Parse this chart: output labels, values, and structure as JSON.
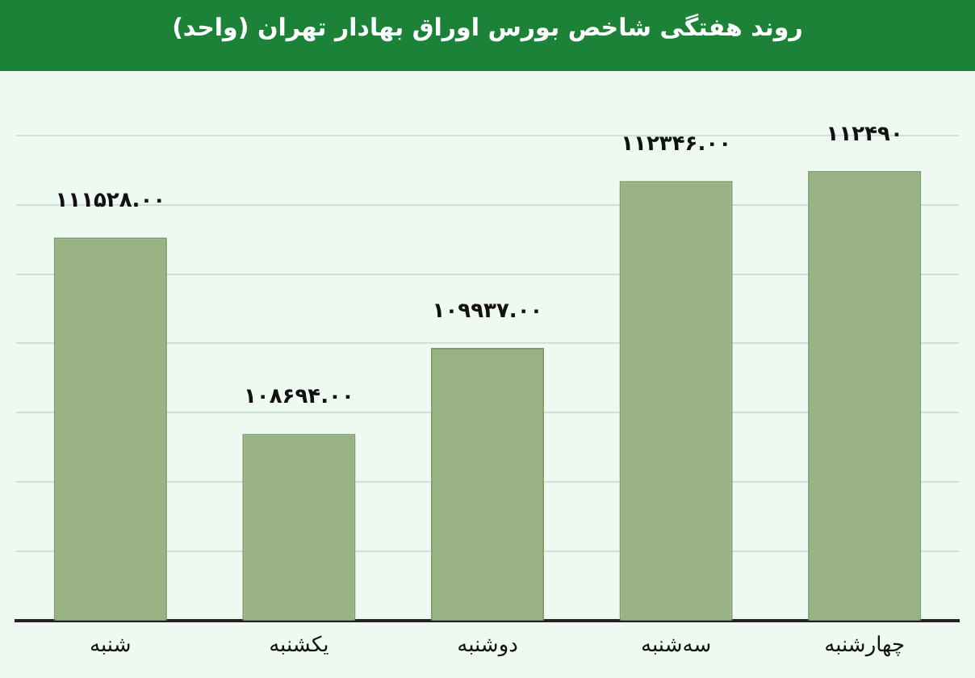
{
  "chart_data": {
    "type": "bar",
    "title": "روند هفتگی شاخص بورس اوراق بهادار تهران (واحد)",
    "categories": [
      "شنبه",
      "یکشنبه",
      "دوشنبه",
      "سه‌شنبه",
      "چهارشنبه"
    ],
    "values": [
      111528,
      108694,
      109937,
      112346,
      112490
    ],
    "value_labels": [
      "۱۱۱۵۲۸.۰۰",
      "۱۰۸۶۹۴.۰۰",
      "۱۰۹۹۳۷.۰۰",
      "۱۱۲۳۴۶.۰۰",
      "۱۱۲۴۹۰"
    ],
    "color": "#98b284",
    "ylim": [
      106000,
      113000
    ],
    "yticks": [
      {
        "value": 106000,
        "label": null
      },
      {
        "value": 107000,
        "label": null
      },
      {
        "value": 108000,
        "label": null
      },
      {
        "value": 109000,
        "label": null
      },
      {
        "value": 110000,
        "label": null
      },
      {
        "value": 111000,
        "label": null
      },
      {
        "value": 112000,
        "label": null
      },
      {
        "value": 113000,
        "label": null
      }
    ],
    "grid": "y",
    "tick_labels": "x"
  }
}
